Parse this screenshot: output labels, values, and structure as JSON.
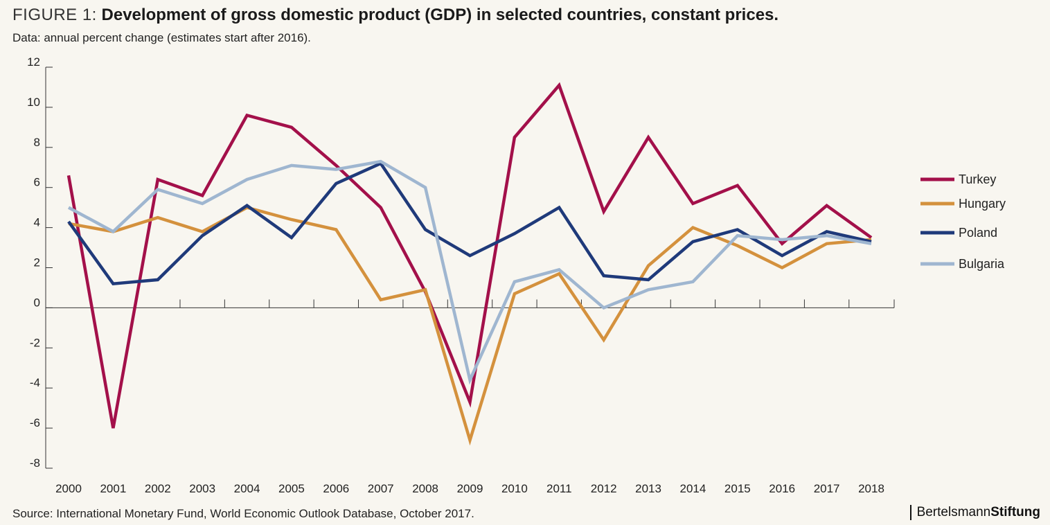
{
  "header": {
    "figure_label": "FIGURE 1:",
    "title": "Development of gross domestic product (GDP) in selected countries, constant prices.",
    "subtitle": "Data: annual percent change (estimates start after 2016)."
  },
  "footer": {
    "source": "Source: International Monetary Fund, World Economic Outlook Database, October 2017.",
    "brand_prefix": "Bertelsmann",
    "brand_suffix": "Stiftung"
  },
  "chart_data": {
    "type": "line",
    "x": [
      "2000",
      "2001",
      "2002",
      "2003",
      "2004",
      "2005",
      "2006",
      "2007",
      "2008",
      "2009",
      "2010",
      "2011",
      "2012",
      "2013",
      "2014",
      "2015",
      "2016",
      "2017",
      "2018"
    ],
    "ylim": [
      -8,
      12
    ],
    "yticks": [
      "12",
      "10",
      "8",
      "6",
      "4",
      "2",
      "0",
      "-2",
      "-4",
      "-6",
      "-8"
    ],
    "grid": false,
    "legend_position": "right",
    "series": [
      {
        "name": "Turkey",
        "color": "#a3104a",
        "values": [
          6.6,
          -6.0,
          6.4,
          5.6,
          9.6,
          9.0,
          7.1,
          5.0,
          0.8,
          -4.7,
          8.5,
          11.1,
          4.8,
          8.5,
          5.2,
          6.1,
          3.2,
          5.1,
          3.5
        ]
      },
      {
        "name": "Hungary",
        "color": "#d4913d",
        "values": [
          4.2,
          3.8,
          4.5,
          3.8,
          5.0,
          4.4,
          3.9,
          0.4,
          0.9,
          -6.6,
          0.7,
          1.7,
          -1.6,
          2.1,
          4.0,
          3.1,
          2.0,
          3.2,
          3.4
        ]
      },
      {
        "name": "Poland",
        "color": "#1f3a7a",
        "values": [
          4.3,
          1.2,
          1.4,
          3.6,
          5.1,
          3.5,
          6.2,
          7.2,
          3.9,
          2.6,
          3.7,
          5.0,
          1.6,
          1.4,
          3.3,
          3.9,
          2.6,
          3.8,
          3.3
        ]
      },
      {
        "name": "Bulgaria",
        "color": "#9fb6d0",
        "values": [
          5.0,
          3.8,
          5.9,
          5.2,
          6.4,
          7.1,
          6.9,
          7.3,
          6.0,
          -3.6,
          1.3,
          1.9,
          0.0,
          0.9,
          1.3,
          3.6,
          3.4,
          3.6,
          3.2
        ]
      }
    ]
  }
}
